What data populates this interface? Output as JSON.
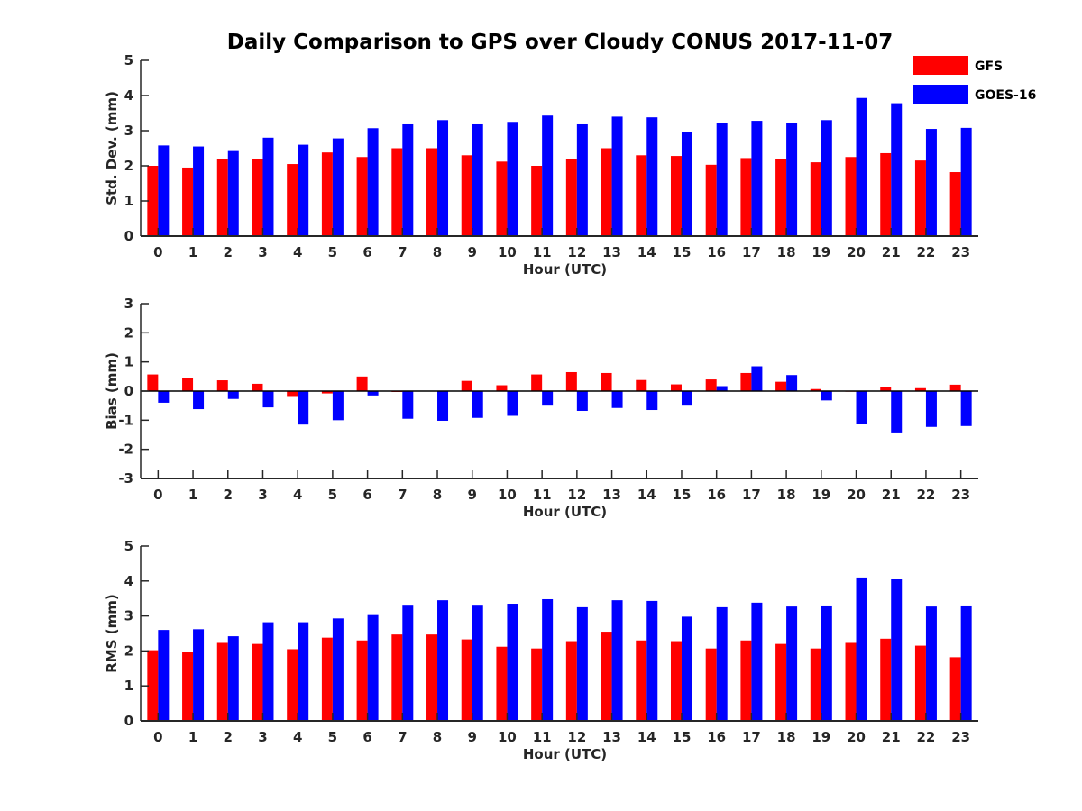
{
  "title": "Daily Comparison to GPS over Cloudy CONUS 2017-11-07",
  "colors": {
    "GFS": "#ff0000",
    "GOES-16": "#0000ff",
    "axis": "#262626"
  },
  "legend": {
    "placement": "top-right",
    "items": [
      "GFS",
      "GOES-16"
    ]
  },
  "chart_data": [
    {
      "type": "bar",
      "xlabel": "Hour (UTC)",
      "ylabel": "Std. Dev. (mm)",
      "ylim": [
        0,
        5
      ],
      "yticks": [
        "0",
        "1",
        "2",
        "3",
        "4",
        "5"
      ],
      "categories": [
        "0",
        "1",
        "2",
        "3",
        "4",
        "5",
        "6",
        "7",
        "8",
        "9",
        "10",
        "11",
        "12",
        "13",
        "14",
        "15",
        "16",
        "17",
        "18",
        "19",
        "20",
        "21",
        "22",
        "23"
      ],
      "series": [
        {
          "name": "GFS",
          "values": [
            2.0,
            1.95,
            2.2,
            2.2,
            2.05,
            2.38,
            2.25,
            2.5,
            2.5,
            2.3,
            2.12,
            2.0,
            2.2,
            2.5,
            2.3,
            2.28,
            2.03,
            2.22,
            2.18,
            2.1,
            2.25,
            2.36,
            2.15,
            1.82
          ]
        },
        {
          "name": "GOES-16",
          "values": [
            2.58,
            2.55,
            2.42,
            2.8,
            2.6,
            2.78,
            3.07,
            3.18,
            3.3,
            3.18,
            3.25,
            3.43,
            3.18,
            3.4,
            3.38,
            2.95,
            3.23,
            3.28,
            3.23,
            3.3,
            3.93,
            3.78,
            3.05,
            3.08
          ]
        }
      ]
    },
    {
      "type": "bar",
      "xlabel": "Hour (UTC)",
      "ylabel": "Bias (mm)",
      "ylim": [
        -3,
        3
      ],
      "yticks": [
        "-3",
        "-2",
        "-1",
        "0",
        "1",
        "2",
        "3"
      ],
      "categories": [
        "0",
        "1",
        "2",
        "3",
        "4",
        "5",
        "6",
        "7",
        "8",
        "9",
        "10",
        "11",
        "12",
        "13",
        "14",
        "15",
        "16",
        "17",
        "18",
        "19",
        "20",
        "21",
        "22",
        "23"
      ],
      "series": [
        {
          "name": "GFS",
          "values": [
            0.57,
            0.45,
            0.37,
            0.25,
            -0.2,
            -0.08,
            0.5,
            -0.03,
            0.0,
            0.35,
            0.2,
            0.57,
            0.65,
            0.62,
            0.38,
            0.23,
            0.4,
            0.62,
            0.32,
            0.07,
            -0.02,
            0.15,
            0.1,
            0.22
          ]
        },
        {
          "name": "GOES-16",
          "values": [
            -0.4,
            -0.62,
            -0.27,
            -0.56,
            -1.15,
            -1.0,
            -0.15,
            -0.95,
            -1.02,
            -0.92,
            -0.85,
            -0.5,
            -0.68,
            -0.58,
            -0.65,
            -0.5,
            0.17,
            0.85,
            0.55,
            -0.32,
            -1.12,
            -1.42,
            -1.23,
            -1.2
          ]
        }
      ]
    },
    {
      "type": "bar",
      "xlabel": "Hour (UTC)",
      "ylabel": "RMS (mm)",
      "ylim": [
        0,
        5
      ],
      "yticks": [
        "0",
        "1",
        "2",
        "3",
        "4",
        "5"
      ],
      "categories": [
        "0",
        "1",
        "2",
        "3",
        "4",
        "5",
        "6",
        "7",
        "8",
        "9",
        "10",
        "11",
        "12",
        "13",
        "14",
        "15",
        "16",
        "17",
        "18",
        "19",
        "20",
        "21",
        "22",
        "23"
      ],
      "series": [
        {
          "name": "GFS",
          "values": [
            2.02,
            1.97,
            2.23,
            2.2,
            2.05,
            2.38,
            2.3,
            2.47,
            2.47,
            2.33,
            2.12,
            2.07,
            2.28,
            2.55,
            2.3,
            2.28,
            2.07,
            2.3,
            2.2,
            2.07,
            2.23,
            2.35,
            2.15,
            1.82
          ]
        },
        {
          "name": "GOES-16",
          "values": [
            2.6,
            2.62,
            2.42,
            2.82,
            2.82,
            2.93,
            3.05,
            3.32,
            3.45,
            3.32,
            3.35,
            3.48,
            3.25,
            3.45,
            3.43,
            2.98,
            3.25,
            3.38,
            3.27,
            3.3,
            4.1,
            4.05,
            3.27,
            3.3
          ]
        }
      ]
    }
  ]
}
